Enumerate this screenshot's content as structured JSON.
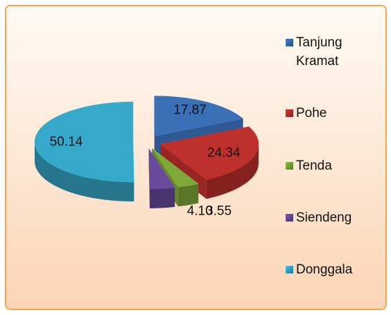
{
  "chart_data": {
    "type": "pie",
    "categories": [
      "Tanjung Kramat",
      "Pohe",
      "Tenda",
      "Siendeng",
      "Donggala"
    ],
    "values": [
      17.87,
      24.34,
      3.55,
      4.1,
      50.14
    ],
    "value_labels": [
      "17.87",
      "24.34",
      "3.55",
      "4.10",
      "50.14"
    ],
    "colors": [
      "#3b6fb6",
      "#be302c",
      "#7fa83a",
      "#6a4a9c",
      "#36a9ca"
    ],
    "legend": "right"
  }
}
